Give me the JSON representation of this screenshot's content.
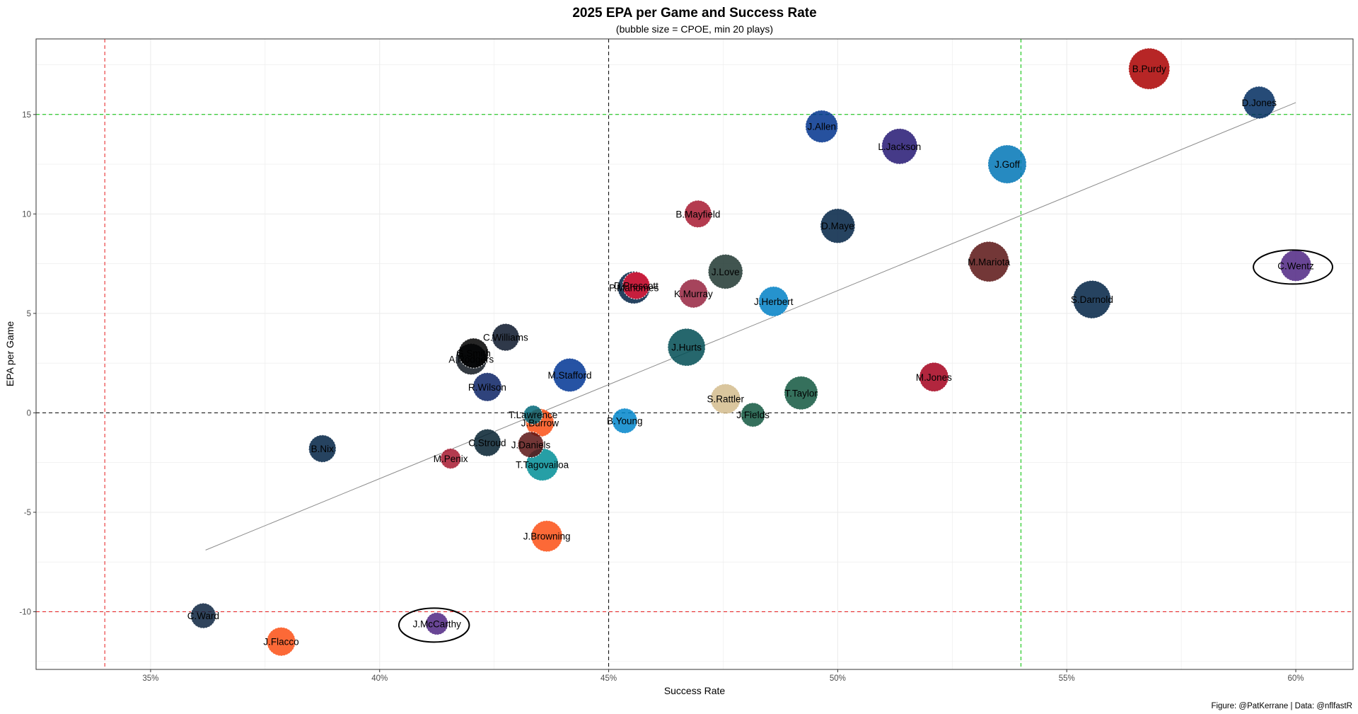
{
  "chart_data": {
    "type": "scatter",
    "title": "2025 EPA per Game and Success Rate",
    "subtitle": "(bubble size = CPOE, min 20 plays)",
    "xlabel": "Success Rate",
    "ylabel": "EPA per Game",
    "caption": "Figure: @PatKerrane | Data: @nflfastR",
    "xlim": [
      0.325,
      0.6125
    ],
    "ylim": [
      -12.9,
      18.8
    ],
    "x_ticks": [
      0.35,
      0.4,
      0.45,
      0.5,
      0.55,
      0.6
    ],
    "x_tick_labels": [
      "35%",
      "40%",
      "45%",
      "50%",
      "55%",
      "60%"
    ],
    "y_ticks": [
      -10,
      -5,
      0,
      5,
      10,
      15
    ],
    "y_tick_labels": [
      "-10",
      "-5",
      "0",
      "5",
      "10",
      "15"
    ],
    "grid": true,
    "reference_lines": [
      {
        "axis": "x",
        "value": 0.34,
        "color": "#e41a1c",
        "style": "dashed"
      },
      {
        "axis": "x",
        "value": 0.45,
        "color": "#000000",
        "style": "dashed"
      },
      {
        "axis": "x",
        "value": 0.54,
        "color": "#00c000",
        "style": "dashed"
      },
      {
        "axis": "y",
        "value": -10,
        "color": "#e41a1c",
        "style": "dashed"
      },
      {
        "axis": "y",
        "value": 0,
        "color": "#000000",
        "style": "dashed"
      },
      {
        "axis": "y",
        "value": 15,
        "color": "#00c000",
        "style": "dashed"
      }
    ],
    "trend_line": {
      "x": [
        0.362,
        0.6
      ],
      "y": [
        -6.9,
        15.6
      ],
      "color": "#8c8c8c"
    },
    "points": [
      {
        "label": "B.Purdy",
        "x": 0.568,
        "y": 17.3,
        "size": 1.0,
        "color": "#aa0000"
      },
      {
        "label": "D.Jones",
        "x": 0.592,
        "y": 15.6,
        "size": 0.55,
        "color": "#002c5f"
      },
      {
        "label": "J.Allen",
        "x": 0.4965,
        "y": 14.4,
        "size": 0.55,
        "color": "#00338d"
      },
      {
        "label": "L.Jackson",
        "x": 0.5135,
        "y": 13.4,
        "size": 0.7,
        "color": "#241773"
      },
      {
        "label": "J.Goff",
        "x": 0.537,
        "y": 12.5,
        "size": 0.85,
        "color": "#0076b6"
      },
      {
        "label": "B.Mayfield",
        "x": 0.4695,
        "y": 10.0,
        "size": 0.35,
        "color": "#a71930"
      },
      {
        "label": "D.Maye",
        "x": 0.5,
        "y": 9.4,
        "size": 0.65,
        "color": "#002244"
      },
      {
        "label": "M.Mariota",
        "x": 0.533,
        "y": 7.6,
        "size": 0.95,
        "color": "#5a1414"
      },
      {
        "label": "C.Wentz",
        "x": 0.6,
        "y": 7.4,
        "size": 0.5,
        "color": "#4f2683"
      },
      {
        "label": "J.Love",
        "x": 0.4755,
        "y": 7.1,
        "size": 0.65,
        "color": "#203731"
      },
      {
        "label": "P.Mahomes",
        "x": 0.4555,
        "y": 6.3,
        "size": 0.55,
        "color": "#002244"
      },
      {
        "label": "D.Prescott",
        "x": 0.456,
        "y": 6.4,
        "size": 0.35,
        "color": "#e31837"
      },
      {
        "label": "K.Murray",
        "x": 0.4685,
        "y": 6.0,
        "size": 0.4,
        "color": "#97233f"
      },
      {
        "label": "J.Herbert",
        "x": 0.486,
        "y": 5.6,
        "size": 0.45,
        "color": "#0080c6"
      },
      {
        "label": "S.Darnold",
        "x": 0.5555,
        "y": 5.7,
        "size": 0.82,
        "color": "#002244"
      },
      {
        "label": "C.Williams",
        "x": 0.4275,
        "y": 3.8,
        "size": 0.35,
        "color": "#0b162a"
      },
      {
        "label": "G.Smith",
        "x": 0.4205,
        "y": 3.0,
        "size": 0.45,
        "color": "#000000"
      },
      {
        "label": "A.Rodgers",
        "x": 0.42,
        "y": 2.7,
        "size": 0.5,
        "color": "#101820"
      },
      {
        "label": "J.Hurts",
        "x": 0.467,
        "y": 3.3,
        "size": 0.8,
        "color": "#004c54"
      },
      {
        "label": "M.Stafford",
        "x": 0.4415,
        "y": 1.9,
        "size": 0.6,
        "color": "#003594"
      },
      {
        "label": "R.Wilson",
        "x": 0.4235,
        "y": 1.3,
        "size": 0.4,
        "color": "#0b2265"
      },
      {
        "label": "T.Taylor",
        "x": 0.492,
        "y": 1.0,
        "size": 0.6,
        "color": "#125740"
      },
      {
        "label": "M.Jones",
        "x": 0.521,
        "y": 1.8,
        "size": 0.42,
        "color": "#a5001c"
      },
      {
        "label": "S.Rattler",
        "x": 0.4755,
        "y": 0.7,
        "size": 0.45,
        "color": "#d3bc8d"
      },
      {
        "label": "T.Lawrence",
        "x": 0.4335,
        "y": -0.1,
        "size": 0.12,
        "color": "#006778"
      },
      {
        "label": "J.Burrow",
        "x": 0.435,
        "y": -0.5,
        "size": 0.38,
        "color": "#fb4f14"
      },
      {
        "label": "B.Young",
        "x": 0.4535,
        "y": -0.4,
        "size": 0.28,
        "color": "#0085ca"
      },
      {
        "label": "J.Fields",
        "x": 0.4815,
        "y": -0.1,
        "size": 0.25,
        "color": "#125740"
      },
      {
        "label": "B.Nix",
        "x": 0.3875,
        "y": -1.8,
        "size": 0.35,
        "color": "#002244"
      },
      {
        "label": "C.Stroud",
        "x": 0.4235,
        "y": -1.5,
        "size": 0.35,
        "color": "#03202f"
      },
      {
        "label": "J.Daniels",
        "x": 0.433,
        "y": -1.6,
        "size": 0.3,
        "color": "#5a1414"
      },
      {
        "label": "M.Penix",
        "x": 0.4155,
        "y": -2.3,
        "size": 0.15,
        "color": "#a71930"
      },
      {
        "label": "T.Tagovailoa",
        "x": 0.4355,
        "y": -2.6,
        "size": 0.55,
        "color": "#008e97"
      },
      {
        "label": "J.Browning",
        "x": 0.4365,
        "y": -6.2,
        "size": 0.5,
        "color": "#fb4f14"
      },
      {
        "label": "C.Ward",
        "x": 0.3615,
        "y": -10.2,
        "size": 0.28,
        "color": "#0c2340"
      },
      {
        "label": "J.Flacco",
        "x": 0.3785,
        "y": -11.5,
        "size": 0.4,
        "color": "#fb4f14"
      },
      {
        "label": "J.McCarthy",
        "x": 0.4125,
        "y": -10.6,
        "size": 0.2,
        "color": "#4f2683"
      }
    ],
    "highlighted": [
      "C.Wentz",
      "J.McCarthy"
    ]
  }
}
